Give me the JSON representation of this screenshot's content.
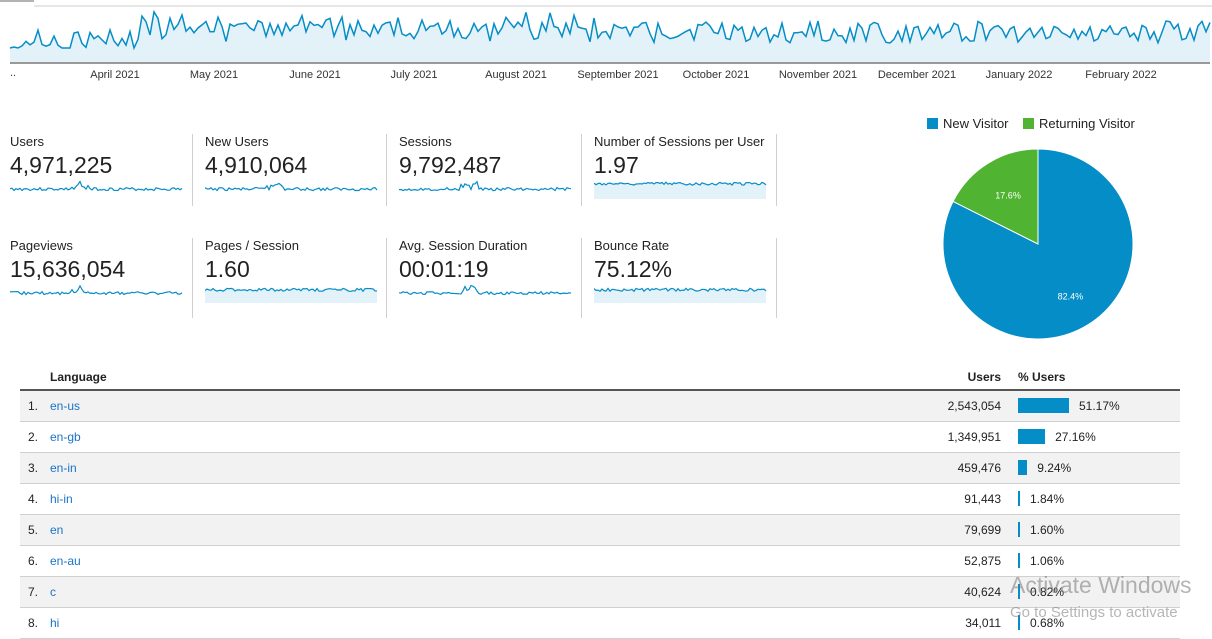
{
  "timeline": {
    "leading_label": "..",
    "months": [
      "April 2021",
      "May 2021",
      "June 2021",
      "July 2021",
      "August 2021",
      "September 2021",
      "October 2021",
      "November 2021",
      "December 2021",
      "January 2022",
      "February 2022"
    ]
  },
  "metrics": [
    {
      "label": "Users",
      "value": "4,971,225"
    },
    {
      "label": "New Users",
      "value": "4,910,064"
    },
    {
      "label": "Sessions",
      "value": "9,792,487"
    },
    {
      "label": "Number of Sessions per User",
      "value": "1.97"
    },
    {
      "label": "Pageviews",
      "value": "15,636,054"
    },
    {
      "label": "Pages / Session",
      "value": "1.60"
    },
    {
      "label": "Avg. Session Duration",
      "value": "00:01:19"
    },
    {
      "label": "Bounce Rate",
      "value": "75.12%"
    }
  ],
  "pie": {
    "legend": [
      {
        "label": "New Visitor",
        "color": "#058dc7"
      },
      {
        "label": "Returning Visitor",
        "color": "#50b432"
      }
    ],
    "slices": [
      {
        "name": "New Visitor",
        "value": 82.4,
        "label": "82.4%",
        "color": "#058dc7"
      },
      {
        "name": "Returning Visitor",
        "value": 17.6,
        "label": "17.6%",
        "color": "#50b432"
      }
    ]
  },
  "table": {
    "headers": {
      "language": "Language",
      "users": "Users",
      "pct": "% Users"
    },
    "rows": [
      {
        "idx": "1.",
        "language": "en-us",
        "users": "2,543,054",
        "pct": "51.17%",
        "share": 51.17
      },
      {
        "idx": "2.",
        "language": "en-gb",
        "users": "1,349,951",
        "pct": "27.16%",
        "share": 27.16
      },
      {
        "idx": "3.",
        "language": "en-in",
        "users": "459,476",
        "pct": "9.24%",
        "share": 9.24
      },
      {
        "idx": "4.",
        "language": "hi-in",
        "users": "91,443",
        "pct": "1.84%",
        "share": 1.84
      },
      {
        "idx": "5.",
        "language": "en",
        "users": "79,699",
        "pct": "1.60%",
        "share": 1.6
      },
      {
        "idx": "6.",
        "language": "en-au",
        "users": "52,875",
        "pct": "1.06%",
        "share": 1.06
      },
      {
        "idx": "7.",
        "language": "c",
        "users": "40,624",
        "pct": "0.82%",
        "share": 0.82
      },
      {
        "idx": "8.",
        "language": "hi",
        "users": "34,011",
        "pct": "0.68%",
        "share": 0.68
      }
    ]
  },
  "watermark": {
    "line1": "Activate Windows",
    "line2": "Go to Settings to activate"
  },
  "colors": {
    "accent": "#058dc7",
    "area_fill": "#e3f1f8",
    "returning": "#50b432"
  }
}
